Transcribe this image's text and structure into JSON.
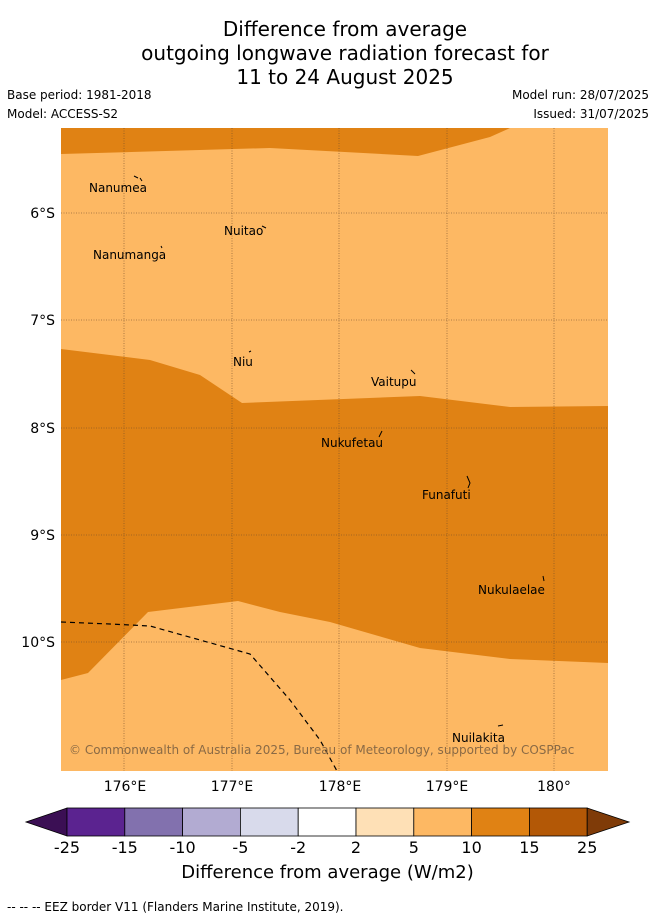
{
  "header": {
    "title_lines": [
      "Difference from average",
      "outgoing longwave radiation forecast for",
      "11 to 24 August 2025"
    ],
    "base_period": "Base period: 1981-2018",
    "model": "Model: ACCESS-S2",
    "model_run": "Model run: 28/07/2025",
    "issued": "Issued: 31/07/2025"
  },
  "map": {
    "lat_labels": [
      "6°S",
      "7°S",
      "8°S",
      "9°S",
      "10°S"
    ],
    "lon_labels": [
      "176°E",
      "177°E",
      "178°E",
      "179°E",
      "180°"
    ],
    "places": [
      {
        "name": "Nanumea",
        "lon": 176.16,
        "lat": -5.69
      },
      {
        "name": "Nuitao",
        "lon": 177.3,
        "lat": -6.12
      },
      {
        "name": "Nanumanga",
        "lon": 176.32,
        "lat": -6.29
      },
      {
        "name": "Niu",
        "lon": 177.16,
        "lat": -7.29
      },
      {
        "name": "Vaitupu",
        "lon": 178.68,
        "lat": -7.48
      },
      {
        "name": "Nukufetau",
        "lon": 178.4,
        "lat": -8.03
      },
      {
        "name": "Funafuti",
        "lon": 179.2,
        "lat": -8.52
      },
      {
        "name": "Nukulaelae",
        "lon": 179.84,
        "lat": -9.4
      },
      {
        "name": "Nuilakita",
        "lon": 179.47,
        "lat": -10.78
      }
    ],
    "copyright": "© Commonwealth of Australia 2025, Bureau of Meteorology, supported by COSPPac"
  },
  "colorbar": {
    "ticks": [
      "-25",
      "-15",
      "-10",
      "-5",
      "-2",
      "2",
      "5",
      "10",
      "15",
      "25"
    ],
    "colors": [
      "#3b0f54",
      "#5b2390",
      "#8271ae",
      "#b2abd2",
      "#d8daeb",
      "#ffffff",
      "#fee0b6",
      "#fdb863",
      "#e08214",
      "#b35806",
      "#7f3b08"
    ],
    "label": "Difference from average (W/m2)"
  },
  "footer": "--  --  -- EEZ border V11 (Flanders Marine Institute, 2019)."
}
